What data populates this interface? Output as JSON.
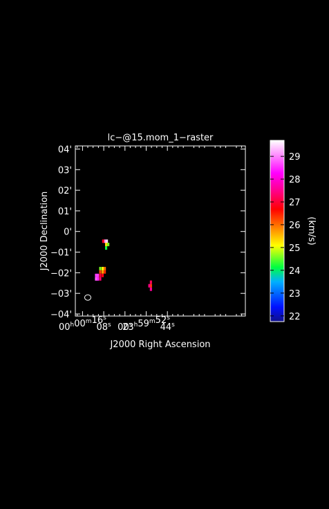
{
  "chart_data": {
    "type": "heatmap",
    "title": "lc−@15.mom_1−raster",
    "xlabel": "J2000 Right Ascension",
    "ylabel": "J2000 Declination",
    "colorbar_label": "(km/s)",
    "colorbar_ticks": [
      "22",
      "23",
      "24",
      "25",
      "26",
      "27",
      "28",
      "29"
    ],
    "colorbar_range": [
      21.75,
      29.7
    ],
    "x_ticks": [
      {
        "h": "00",
        "m": "00",
        "s": "16"
      },
      {
        "s": "08"
      },
      {
        "s": "00"
      },
      {
        "h": "23",
        "m": "59",
        "s": "52"
      },
      {
        "s": "44"
      }
    ],
    "y_ticks": [
      "04'",
      "03'",
      "02'",
      "01'",
      "0'",
      "−01'",
      "−02'",
      "−03'",
      "−04'"
    ],
    "pixels": [
      {
        "ra_s": 7.6,
        "dec": -0.47,
        "value": 29.2
      },
      {
        "ra_s": 6.8,
        "dec": -0.47,
        "value": 29.5
      },
      {
        "ra_s": 8.2,
        "dec": -0.47,
        "value": 26.9
      },
      {
        "ra_s": 7.1,
        "dec": -0.63,
        "value": 25.3
      },
      {
        "ra_s": 6.3,
        "dec": -0.63,
        "value": 24.6
      },
      {
        "ra_s": 7.1,
        "dec": -0.8,
        "value": 24.2
      },
      {
        "ra_s": 9.3,
        "dec": -1.8,
        "value": 24.6
      },
      {
        "ra_s": 8.4,
        "dec": -1.8,
        "value": 25.1
      },
      {
        "ra_s": 7.6,
        "dec": -1.8,
        "value": 26.0
      },
      {
        "ra_s": 9.3,
        "dec": -1.96,
        "value": 26.2
      },
      {
        "ra_s": 8.4,
        "dec": -1.96,
        "value": 25.7
      },
      {
        "ra_s": 7.6,
        "dec": -1.96,
        "value": 26.4
      },
      {
        "ra_s": 9.3,
        "dec": -2.13,
        "value": 27.0
      },
      {
        "ra_s": 8.4,
        "dec": -2.13,
        "value": 26.8
      },
      {
        "ra_s": 10.9,
        "dec": -2.13,
        "value": 28.6
      },
      {
        "ra_s": 10.2,
        "dec": -2.13,
        "value": 28.6
      },
      {
        "ra_s": 10.9,
        "dec": -2.3,
        "value": 28.8
      },
      {
        "ra_s": 10.2,
        "dec": -2.3,
        "value": 28.5
      },
      {
        "ra_s": 9.3,
        "dec": -2.3,
        "value": 27.3
      },
      {
        "ra_s": -9.8,
        "dec": -2.46,
        "value": 27.2
      },
      {
        "ra_s": -9.8,
        "dec": -2.63,
        "value": 26.3
      },
      {
        "ra_s": -9.2,
        "dec": -2.63,
        "value": 27.4
      },
      {
        "ra_s": -9.8,
        "dec": -2.8,
        "value": 27.6
      }
    ],
    "beam": {
      "ra_s": 14.0,
      "dec": -3.2
    },
    "xlim": [
      18.7,
      -45.4
    ],
    "ylim": [
      -4.1,
      4.15
    ],
    "grid": false
  }
}
